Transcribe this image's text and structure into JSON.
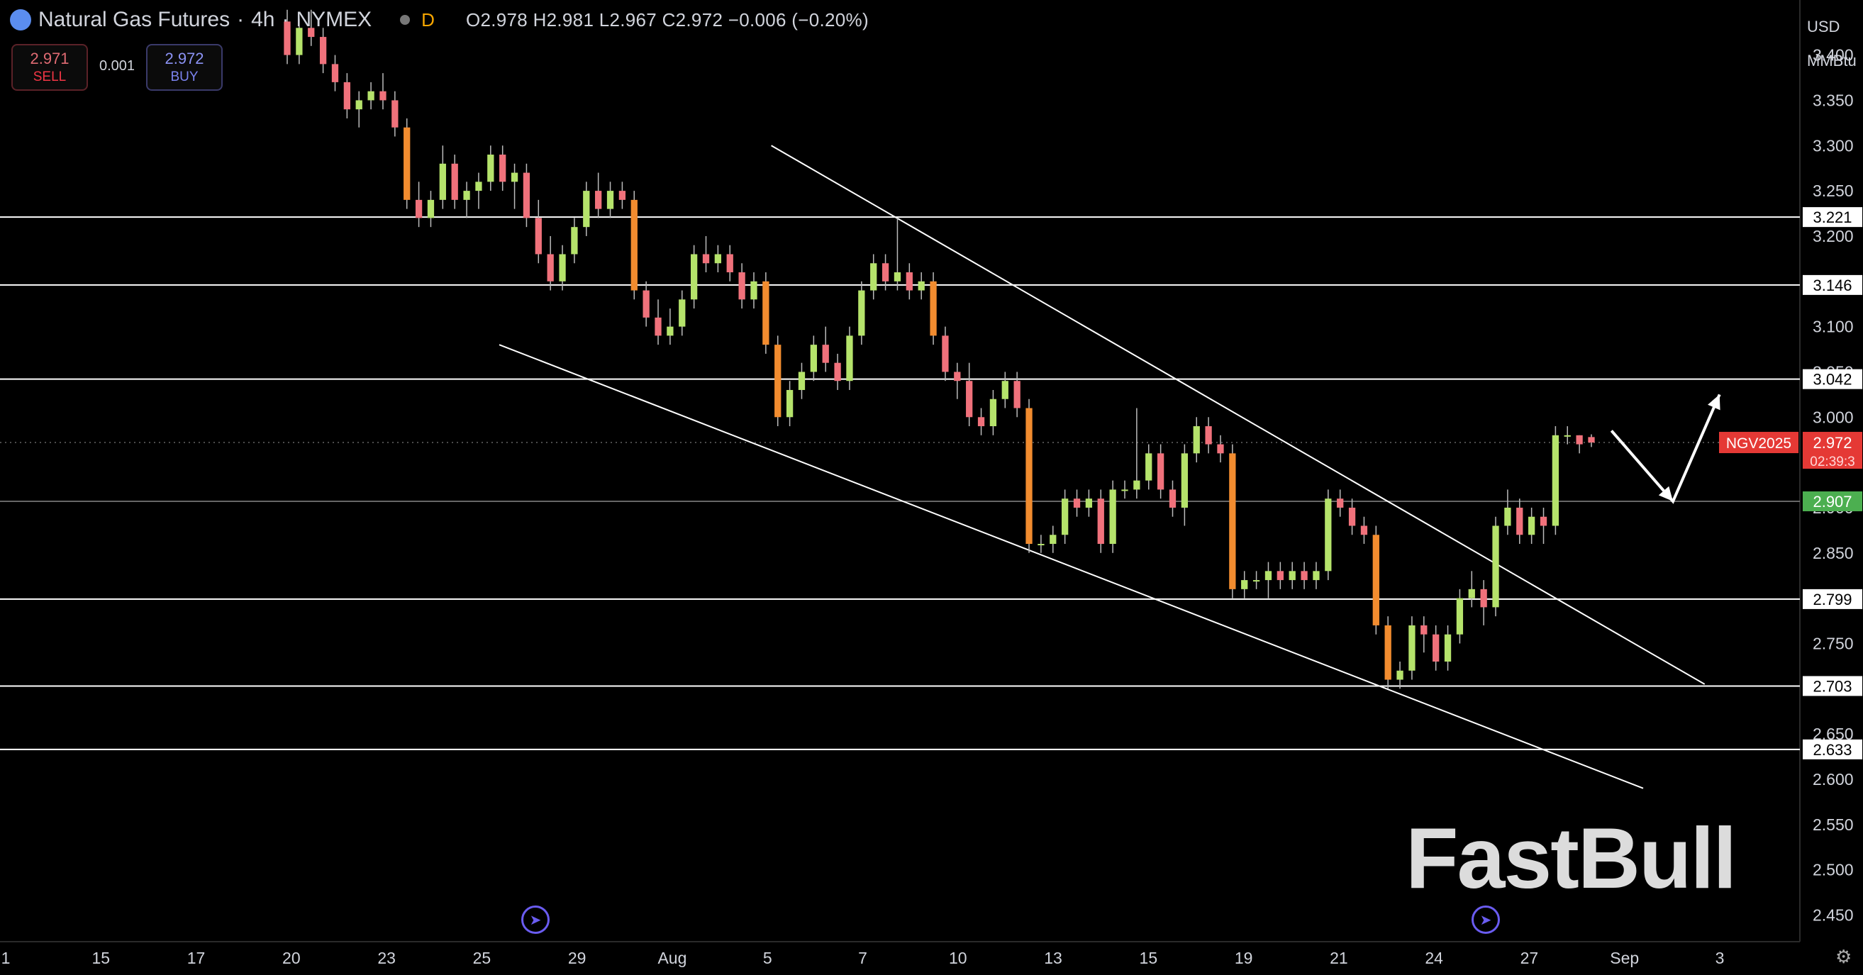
{
  "header": {
    "symbol": "Natural Gas Futures",
    "resolution": "4h",
    "exchange": "NYMEX",
    "mode_badge": "D",
    "ohlc": "O2.978 H2.981 L2.967 C2.972 −0.006 (−0.20%)"
  },
  "trade": {
    "sell_price": "2.971",
    "sell_label": "SELL",
    "spread": "0.001",
    "buy_price": "2.972",
    "buy_label": "BUY"
  },
  "axis": {
    "currency": "USD",
    "unit": "MMBtu"
  },
  "watermark": "FastBull",
  "colors": {
    "background": "#000000",
    "up": "#b5e36b",
    "down": "#f0717b",
    "down_strong": "#f28c2f",
    "line": "#ffffff",
    "price_tag": "#e53935",
    "support_tag": "#4caf50"
  },
  "chart_data": {
    "type": "candlestick",
    "ylim": [
      2.43,
      3.46
    ],
    "y_ticks": [
      2.45,
      2.5,
      2.55,
      2.6,
      2.65,
      2.7,
      2.75,
      2.8,
      2.85,
      2.9,
      3.0,
      3.05,
      3.1,
      3.15,
      3.2,
      3.25,
      3.3,
      3.35,
      3.4
    ],
    "x_labels": [
      "1",
      "15",
      "17",
      "20",
      "23",
      "25",
      "29",
      "Aug",
      "5",
      "7",
      "10",
      "13",
      "15",
      "19",
      "21",
      "24",
      "27",
      "Sep",
      "3"
    ],
    "horizontal_levels": [
      {
        "value": 3.221,
        "label": "3.221"
      },
      {
        "value": 3.146,
        "label": "3.146"
      },
      {
        "value": 3.042,
        "label": "3.042"
      },
      {
        "value": 2.907,
        "label": "2.907",
        "style": "support"
      },
      {
        "value": 2.799,
        "label": "2.799"
      },
      {
        "value": 2.703,
        "label": "2.703"
      },
      {
        "value": 2.633,
        "label": "2.633"
      }
    ],
    "current_price": {
      "symbol": "NGV2025",
      "value": 2.972,
      "label": "2.972",
      "countdown": "02:39:3"
    },
    "channel": {
      "upper": [
        [
          0.414,
          3.3
        ],
        [
          0.915,
          2.705
        ]
      ],
      "lower": [
        [
          0.268,
          3.08
        ],
        [
          0.882,
          2.59
        ]
      ]
    },
    "projection": [
      [
        0.865,
        2.985
      ],
      [
        0.898,
        2.907
      ],
      [
        0.923,
        3.025
      ]
    ],
    "candles": [
      [
        3.437,
        3.45,
        3.39,
        3.4
      ],
      [
        3.4,
        3.44,
        3.39,
        3.43
      ],
      [
        3.43,
        3.45,
        3.41,
        3.42
      ],
      [
        3.42,
        3.43,
        3.38,
        3.39
      ],
      [
        3.39,
        3.4,
        3.36,
        3.37
      ],
      [
        3.37,
        3.38,
        3.33,
        3.34
      ],
      [
        3.34,
        3.36,
        3.32,
        3.35
      ],
      [
        3.35,
        3.37,
        3.34,
        3.36
      ],
      [
        3.36,
        3.38,
        3.34,
        3.35
      ],
      [
        3.35,
        3.36,
        3.31,
        3.32
      ],
      [
        3.32,
        3.33,
        3.23,
        3.24
      ],
      [
        3.24,
        3.26,
        3.21,
        3.22
      ],
      [
        3.22,
        3.25,
        3.21,
        3.24
      ],
      [
        3.24,
        3.3,
        3.23,
        3.28
      ],
      [
        3.28,
        3.29,
        3.23,
        3.24
      ],
      [
        3.24,
        3.26,
        3.22,
        3.25
      ],
      [
        3.25,
        3.27,
        3.23,
        3.26
      ],
      [
        3.26,
        3.3,
        3.25,
        3.29
      ],
      [
        3.29,
        3.3,
        3.25,
        3.26
      ],
      [
        3.26,
        3.28,
        3.23,
        3.27
      ],
      [
        3.27,
        3.28,
        3.21,
        3.22
      ],
      [
        3.22,
        3.24,
        3.17,
        3.18
      ],
      [
        3.18,
        3.2,
        3.14,
        3.15
      ],
      [
        3.15,
        3.19,
        3.14,
        3.18
      ],
      [
        3.18,
        3.22,
        3.17,
        3.21
      ],
      [
        3.21,
        3.26,
        3.2,
        3.25
      ],
      [
        3.25,
        3.27,
        3.22,
        3.23
      ],
      [
        3.23,
        3.26,
        3.22,
        3.25
      ],
      [
        3.25,
        3.26,
        3.23,
        3.24
      ],
      [
        3.24,
        3.25,
        3.13,
        3.14
      ],
      [
        3.14,
        3.15,
        3.1,
        3.11
      ],
      [
        3.11,
        3.13,
        3.08,
        3.09
      ],
      [
        3.09,
        3.12,
        3.08,
        3.1
      ],
      [
        3.1,
        3.14,
        3.09,
        3.13
      ],
      [
        3.13,
        3.19,
        3.12,
        3.18
      ],
      [
        3.18,
        3.2,
        3.16,
        3.17
      ],
      [
        3.17,
        3.19,
        3.16,
        3.18
      ],
      [
        3.18,
        3.19,
        3.15,
        3.16
      ],
      [
        3.16,
        3.17,
        3.12,
        3.13
      ],
      [
        3.13,
        3.16,
        3.12,
        3.15
      ],
      [
        3.15,
        3.16,
        3.07,
        3.08
      ],
      [
        3.08,
        3.09,
        2.99,
        3.0
      ],
      [
        3.0,
        3.04,
        2.99,
        3.03
      ],
      [
        3.03,
        3.06,
        3.02,
        3.05
      ],
      [
        3.05,
        3.09,
        3.04,
        3.08
      ],
      [
        3.08,
        3.1,
        3.05,
        3.06
      ],
      [
        3.06,
        3.07,
        3.03,
        3.04
      ],
      [
        3.04,
        3.1,
        3.03,
        3.09
      ],
      [
        3.09,
        3.15,
        3.08,
        3.14
      ],
      [
        3.14,
        3.18,
        3.13,
        3.17
      ],
      [
        3.17,
        3.18,
        3.14,
        3.15
      ],
      [
        3.15,
        3.22,
        3.14,
        3.16
      ],
      [
        3.16,
        3.17,
        3.13,
        3.14
      ],
      [
        3.14,
        3.16,
        3.13,
        3.15
      ],
      [
        3.15,
        3.16,
        3.08,
        3.09
      ],
      [
        3.09,
        3.1,
        3.04,
        3.05
      ],
      [
        3.05,
        3.06,
        3.02,
        3.04
      ],
      [
        3.04,
        3.06,
        2.99,
        3.0
      ],
      [
        3.0,
        3.01,
        2.98,
        2.99
      ],
      [
        2.99,
        3.03,
        2.98,
        3.02
      ],
      [
        3.02,
        3.05,
        3.01,
        3.04
      ],
      [
        3.04,
        3.05,
        3.0,
        3.01
      ],
      [
        3.01,
        3.02,
        2.85,
        2.86
      ],
      [
        2.86,
        2.87,
        2.85,
        2.86
      ],
      [
        2.86,
        2.88,
        2.85,
        2.87
      ],
      [
        2.87,
        2.92,
        2.86,
        2.91
      ],
      [
        2.91,
        2.92,
        2.89,
        2.9
      ],
      [
        2.9,
        2.92,
        2.89,
        2.91
      ],
      [
        2.91,
        2.92,
        2.85,
        2.86
      ],
      [
        2.86,
        2.93,
        2.85,
        2.92
      ],
      [
        2.92,
        2.93,
        2.91,
        2.92
      ],
      [
        2.92,
        3.01,
        2.91,
        2.93
      ],
      [
        2.93,
        2.97,
        2.92,
        2.96
      ],
      [
        2.96,
        2.97,
        2.91,
        2.92
      ],
      [
        2.92,
        2.93,
        2.89,
        2.9
      ],
      [
        2.9,
        2.97,
        2.88,
        2.96
      ],
      [
        2.96,
        3.0,
        2.95,
        2.99
      ],
      [
        2.99,
        3.0,
        2.96,
        2.97
      ],
      [
        2.97,
        2.98,
        2.95,
        2.96
      ],
      [
        2.96,
        2.97,
        2.8,
        2.81
      ],
      [
        2.81,
        2.83,
        2.8,
        2.82
      ],
      [
        2.82,
        2.83,
        2.81,
        2.82
      ],
      [
        2.82,
        2.84,
        2.8,
        2.83
      ],
      [
        2.83,
        2.84,
        2.81,
        2.82
      ],
      [
        2.82,
        2.84,
        2.81,
        2.83
      ],
      [
        2.83,
        2.84,
        2.81,
        2.82
      ],
      [
        2.82,
        2.84,
        2.81,
        2.83
      ],
      [
        2.83,
        2.92,
        2.82,
        2.91
      ],
      [
        2.91,
        2.92,
        2.89,
        2.9
      ],
      [
        2.9,
        2.91,
        2.87,
        2.88
      ],
      [
        2.88,
        2.89,
        2.86,
        2.87
      ],
      [
        2.87,
        2.88,
        2.76,
        2.77
      ],
      [
        2.77,
        2.78,
        2.7,
        2.71
      ],
      [
        2.71,
        2.73,
        2.7,
        2.72
      ],
      [
        2.72,
        2.78,
        2.71,
        2.77
      ],
      [
        2.77,
        2.78,
        2.74,
        2.76
      ],
      [
        2.76,
        2.77,
        2.72,
        2.73
      ],
      [
        2.73,
        2.77,
        2.72,
        2.76
      ],
      [
        2.76,
        2.81,
        2.75,
        2.8
      ],
      [
        2.8,
        2.83,
        2.79,
        2.81
      ],
      [
        2.81,
        2.82,
        2.77,
        2.79
      ],
      [
        2.79,
        2.89,
        2.78,
        2.88
      ],
      [
        2.88,
        2.92,
        2.87,
        2.9
      ],
      [
        2.9,
        2.91,
        2.86,
        2.87
      ],
      [
        2.87,
        2.9,
        2.86,
        2.89
      ],
      [
        2.89,
        2.9,
        2.86,
        2.88
      ],
      [
        2.88,
        2.99,
        2.87,
        2.98
      ],
      [
        2.98,
        2.99,
        2.97,
        2.98
      ],
      [
        2.98,
        2.98,
        2.96,
        2.97
      ],
      [
        2.978,
        2.981,
        2.967,
        2.972
      ]
    ]
  }
}
